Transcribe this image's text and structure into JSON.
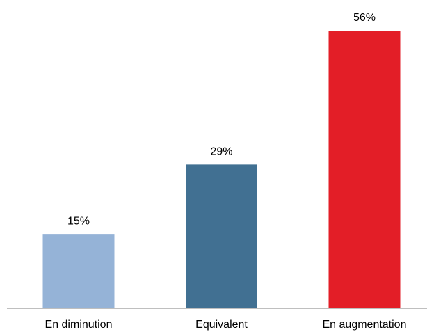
{
  "chart_data": {
    "type": "bar",
    "categories": [
      "En diminution",
      "Equivalent",
      "En augmentation"
    ],
    "values": [
      15,
      29,
      56
    ],
    "value_labels": [
      "15%",
      "29%",
      "56%"
    ],
    "colors": [
      "#95b3d7",
      "#417092",
      "#e31e27"
    ]
  }
}
